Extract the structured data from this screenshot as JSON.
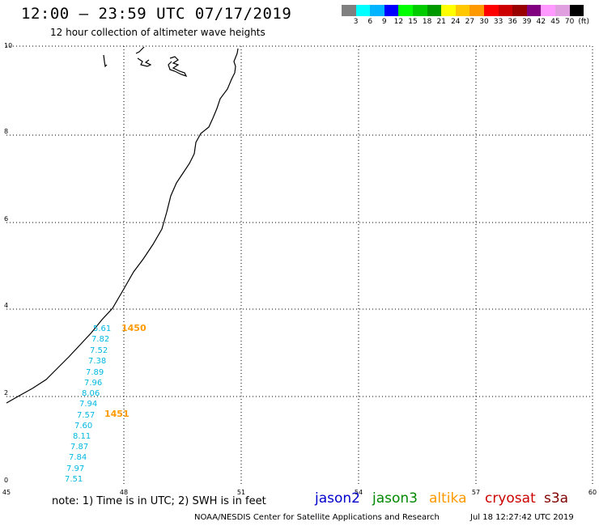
{
  "header": {
    "title": "12:00 – 23:59 UTC 07/17/2019",
    "subtitle": "12 hour collection of altimeter wave heights"
  },
  "legend": {
    "colors": [
      "#808080",
      "#00ffff",
      "#00b4ff",
      "#0000ff",
      "#00ff00",
      "#00cc00",
      "#009900",
      "#ffff00",
      "#ffc800",
      "#ff9900",
      "#ff0000",
      "#cc0000",
      "#990000",
      "#800080",
      "#ff99ff",
      "#e0a0e0",
      "#000000"
    ],
    "labels": [
      "3",
      "6",
      "9",
      "12",
      "15",
      "18",
      "21",
      "24",
      "27",
      "30",
      "33",
      "36",
      "39",
      "42",
      "45",
      "70",
      "(ft)"
    ]
  },
  "axes": {
    "x_ticks": [
      "45",
      "48",
      "51",
      "54",
      "57",
      "60"
    ],
    "y_ticks": [
      "0",
      "2",
      "4",
      "6",
      "8",
      "10"
    ]
  },
  "observations": {
    "swh_color": "#00b8e0",
    "time_color": "#ff9900",
    "swh_values": [
      "5.61",
      "7.82",
      "7.52",
      "7.38",
      "7.89",
      "7.96",
      "8.06",
      "7.94",
      "7.57",
      "7.60",
      "8.11",
      "7.87",
      "7.84",
      "7.97",
      "7.51"
    ],
    "time_labels": [
      "1450",
      "1451"
    ]
  },
  "footer": {
    "note": "note: 1) Time is in UTC; 2) SWH is in feet",
    "satellites": [
      {
        "name": "jason2",
        "color": "#0000cc"
      },
      {
        "name": "jason3",
        "color": "#008800"
      },
      {
        "name": "altika",
        "color": "#ff9900"
      },
      {
        "name": "cryosat",
        "color": "#cc0000"
      },
      {
        "name": "s3a",
        "color": "#800000"
      }
    ],
    "credit": "NOAA/NESDIS Center for Satellite Applications and Research",
    "generated": "Jul 18 12:27:42 UTC 2019"
  }
}
